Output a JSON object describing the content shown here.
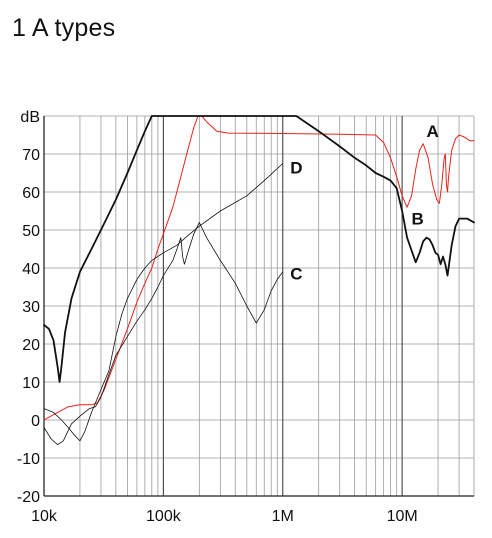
{
  "chart_data": {
    "type": "line",
    "title": "1 A types",
    "x_scale": "log",
    "xlim": [
      10000,
      40000000
    ],
    "ylim": [
      -20,
      80
    ],
    "grid": true,
    "x_ticks": [
      {
        "value": 10000,
        "label": "10k"
      },
      {
        "value": 100000,
        "label": "100k"
      },
      {
        "value": 1000000,
        "label": "1M"
      },
      {
        "value": 10000000,
        "label": "10M"
      }
    ],
    "y_ticks": [
      {
        "value": 80,
        "label": "dB"
      },
      {
        "value": 70,
        "label": "70"
      },
      {
        "value": 60,
        "label": "60"
      },
      {
        "value": 50,
        "label": "50"
      },
      {
        "value": 40,
        "label": "40"
      },
      {
        "value": 30,
        "label": "30"
      },
      {
        "value": 20,
        "label": "20"
      },
      {
        "value": 10,
        "label": "10"
      },
      {
        "value": 0,
        "label": "0"
      },
      {
        "value": -10,
        "label": "-10"
      },
      {
        "value": -20,
        "label": "-20"
      }
    ],
    "series": [
      {
        "name": "A",
        "color": "#e8241a",
        "stroke_weight": "thin",
        "label_at": [
          18000000,
          76
        ],
        "points": [
          [
            10000,
            0
          ],
          [
            13000,
            2
          ],
          [
            16000,
            3.5
          ],
          [
            20000,
            4
          ],
          [
            25000,
            4
          ],
          [
            28000,
            4.5
          ],
          [
            32000,
            8
          ],
          [
            40000,
            16
          ],
          [
            50000,
            24
          ],
          [
            60000,
            31
          ],
          [
            70000,
            36
          ],
          [
            80000,
            40
          ],
          [
            90000,
            45
          ],
          [
            100000,
            49
          ],
          [
            120000,
            56
          ],
          [
            140000,
            64
          ],
          [
            160000,
            71
          ],
          [
            180000,
            77
          ],
          [
            195000,
            80
          ],
          [
            210000,
            80
          ],
          [
            230000,
            78.5
          ],
          [
            280000,
            76
          ],
          [
            350000,
            75.5
          ],
          [
            1000000,
            75.4
          ],
          [
            3000000,
            75.2
          ],
          [
            6000000,
            75
          ],
          [
            7000000,
            73
          ],
          [
            8000000,
            69
          ],
          [
            9000000,
            64
          ],
          [
            10000000,
            59
          ],
          [
            11000000,
            56
          ],
          [
            12000000,
            59
          ],
          [
            13000000,
            66
          ],
          [
            14000000,
            71
          ],
          [
            15000000,
            72.7
          ],
          [
            16500000,
            69
          ],
          [
            18000000,
            62
          ],
          [
            19500000,
            58
          ],
          [
            20500000,
            57
          ],
          [
            21500000,
            62
          ],
          [
            22500000,
            69
          ],
          [
            23000000,
            70
          ],
          [
            23500000,
            62
          ],
          [
            24000000,
            60
          ],
          [
            24500000,
            64
          ],
          [
            26000000,
            71
          ],
          [
            28000000,
            74
          ],
          [
            30000000,
            75
          ],
          [
            33000000,
            74.5
          ],
          [
            37000000,
            73.5
          ],
          [
            40000000,
            73.5
          ]
        ]
      },
      {
        "name": "B",
        "color": "#111111",
        "stroke_weight": "bold",
        "label_at": [
          13500000,
          53
        ],
        "points": [
          [
            10000,
            25
          ],
          [
            11000,
            24
          ],
          [
            12000,
            21
          ],
          [
            13000,
            14
          ],
          [
            13500,
            10
          ],
          [
            14000,
            14
          ],
          [
            15000,
            23
          ],
          [
            17000,
            32
          ],
          [
            20000,
            39
          ],
          [
            25000,
            45
          ],
          [
            30000,
            50
          ],
          [
            40000,
            58
          ],
          [
            50000,
            65
          ],
          [
            60000,
            71
          ],
          [
            70000,
            76
          ],
          [
            80000,
            80
          ],
          [
            1300000,
            80
          ],
          [
            2000000,
            76
          ],
          [
            3000000,
            72
          ],
          [
            4000000,
            69
          ],
          [
            5000000,
            67
          ],
          [
            6000000,
            65
          ],
          [
            7000000,
            64
          ],
          [
            8000000,
            63
          ],
          [
            9000000,
            61
          ],
          [
            10000000,
            55
          ],
          [
            11000000,
            48
          ],
          [
            12500000,
            43
          ],
          [
            13000000,
            41.5
          ],
          [
            14000000,
            44
          ],
          [
            15000000,
            47
          ],
          [
            16000000,
            48
          ],
          [
            17000000,
            47.5
          ],
          [
            18000000,
            46
          ],
          [
            19000000,
            44
          ],
          [
            20000000,
            43.5
          ],
          [
            21000000,
            41
          ],
          [
            22000000,
            43
          ],
          [
            23000000,
            41
          ],
          [
            24000000,
            38
          ],
          [
            26000000,
            46
          ],
          [
            28000000,
            51
          ],
          [
            30000000,
            53
          ],
          [
            35000000,
            53
          ],
          [
            40000000,
            52
          ]
        ]
      },
      {
        "name": "C",
        "color": "#111111",
        "stroke_weight": "hairline",
        "label_at": [
          1300000,
          38.5
        ],
        "points": [
          [
            10000,
            -2
          ],
          [
            11500,
            -5
          ],
          [
            13000,
            -6.5
          ],
          [
            14500,
            -5.5
          ],
          [
            17000,
            -1
          ],
          [
            20000,
            1
          ],
          [
            24000,
            3
          ],
          [
            27000,
            3.5
          ],
          [
            30000,
            6
          ],
          [
            35000,
            12
          ],
          [
            40000,
            17
          ],
          [
            50000,
            22
          ],
          [
            60000,
            26
          ],
          [
            70000,
            29
          ],
          [
            80000,
            32
          ],
          [
            90000,
            35
          ],
          [
            100000,
            38
          ],
          [
            120000,
            42
          ],
          [
            130000,
            45
          ],
          [
            140000,
            48
          ],
          [
            145000,
            43
          ],
          [
            150000,
            41
          ],
          [
            160000,
            44
          ],
          [
            180000,
            49
          ],
          [
            200000,
            52
          ],
          [
            230000,
            48
          ],
          [
            300000,
            42
          ],
          [
            400000,
            36
          ],
          [
            500000,
            30
          ],
          [
            600000,
            25.5
          ],
          [
            700000,
            29
          ],
          [
            800000,
            34
          ],
          [
            900000,
            37
          ],
          [
            1000000,
            39
          ]
        ]
      },
      {
        "name": "D",
        "color": "#111111",
        "stroke_weight": "hairline",
        "label_at": [
          1300000,
          66.5
        ],
        "points": [
          [
            10000,
            3
          ],
          [
            12000,
            2
          ],
          [
            14000,
            0
          ],
          [
            16000,
            -2
          ],
          [
            18000,
            -4
          ],
          [
            20000,
            -5.5
          ],
          [
            22000,
            -3
          ],
          [
            25000,
            2
          ],
          [
            30000,
            8
          ],
          [
            35000,
            13
          ],
          [
            40000,
            22
          ],
          [
            45000,
            28
          ],
          [
            50000,
            32
          ],
          [
            60000,
            37
          ],
          [
            70000,
            40
          ],
          [
            80000,
            42
          ],
          [
            100000,
            44
          ],
          [
            130000,
            46
          ],
          [
            160000,
            48.5
          ],
          [
            200000,
            51
          ],
          [
            300000,
            55
          ],
          [
            500000,
            59
          ],
          [
            700000,
            63
          ],
          [
            1000000,
            67.5
          ]
        ]
      }
    ]
  }
}
